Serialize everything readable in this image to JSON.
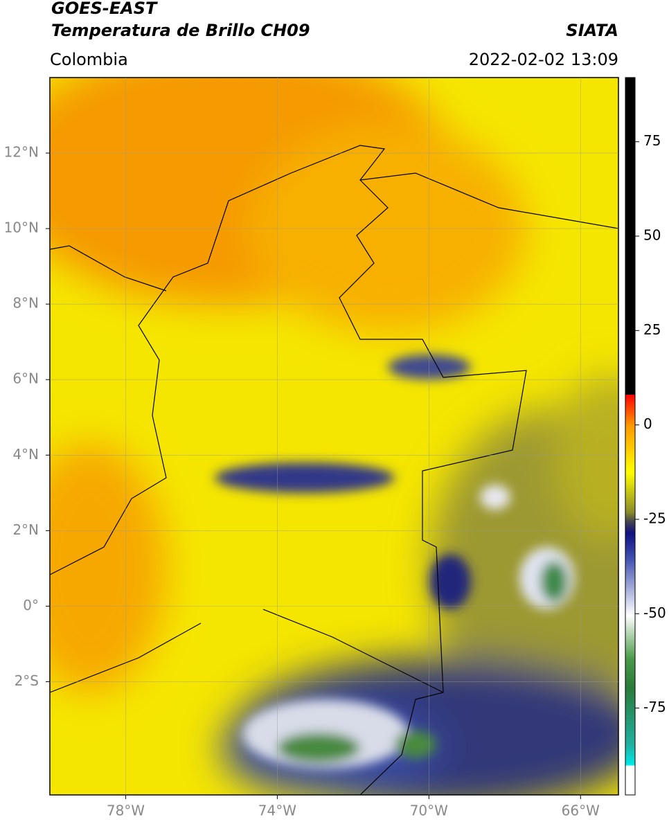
{
  "header": {
    "title": "GOES-EAST",
    "subtitle": "Temperatura de Brillo CH09",
    "source": "SIATA",
    "region": "Colombia",
    "datetime": "2022-02-02 13:09"
  },
  "map": {
    "xlim": [
      -80,
      -65
    ],
    "ylim": [
      -5,
      14
    ],
    "xticks": [
      {
        "value": -78,
        "label": "78°W"
      },
      {
        "value": -74,
        "label": "74°W"
      },
      {
        "value": -70,
        "label": "70°W"
      },
      {
        "value": -66,
        "label": "66°W"
      }
    ],
    "yticks": [
      {
        "value": 12,
        "label": "12°N"
      },
      {
        "value": 10,
        "label": "10°N"
      },
      {
        "value": 8,
        "label": "8°N"
      },
      {
        "value": 6,
        "label": "6°N"
      },
      {
        "value": 4,
        "label": "4°N"
      },
      {
        "value": 2,
        "label": "2°N"
      },
      {
        "value": 0,
        "label": "0°"
      },
      {
        "value": -2,
        "label": "2°S"
      }
    ],
    "grid": true
  },
  "colorbar": {
    "lim": [
      -98,
      92
    ],
    "ticks": [
      75,
      50,
      25,
      0,
      -25,
      -50,
      -75
    ]
  }
}
